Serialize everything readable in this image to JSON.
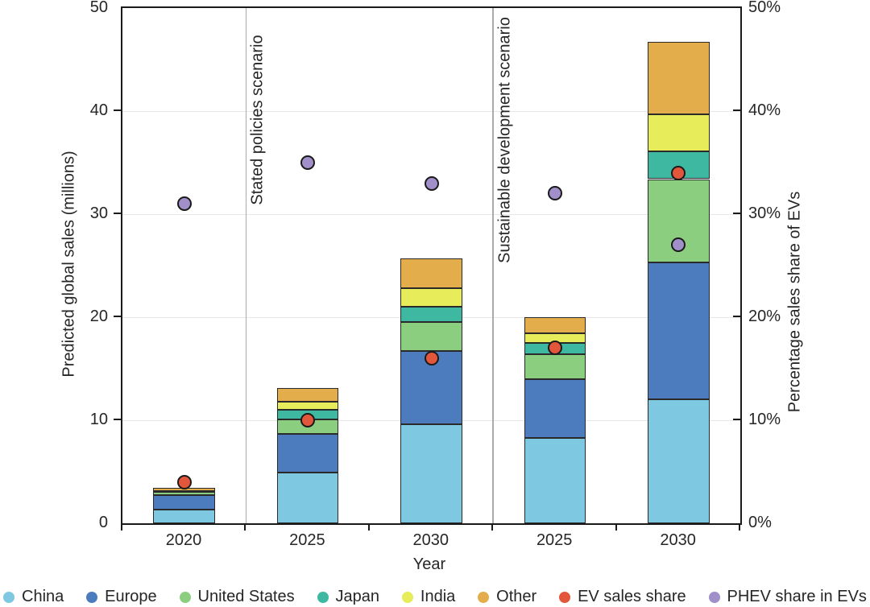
{
  "chart_data": {
    "type": "bar",
    "subtype": "stacked-bar-with-scatter-overlay",
    "categories": [
      "2020",
      "2025",
      "2030",
      "2025",
      "2030"
    ],
    "scenario_labels": [
      "Stated policies scenario",
      "Sustainable development scenario"
    ],
    "separator_slot_boundaries": [
      1,
      3
    ],
    "series": [
      {
        "name": "China",
        "color": "#7EC8E1",
        "values": [
          1.35,
          4.9,
          9.6,
          8.3,
          12.0
        ]
      },
      {
        "name": "Europe",
        "color": "#4C7CBD",
        "values": [
          1.4,
          3.8,
          7.1,
          5.7,
          13.3
        ]
      },
      {
        "name": "United States",
        "color": "#8CCE80",
        "values": [
          0.3,
          1.4,
          2.8,
          2.4,
          8.1
        ]
      },
      {
        "name": "Japan",
        "color": "#3FB8A1",
        "values": [
          0.05,
          0.9,
          1.5,
          1.1,
          2.7
        ]
      },
      {
        "name": "India",
        "color": "#E6EC5A",
        "values": [
          0.05,
          0.8,
          1.8,
          0.9,
          3.6
        ]
      },
      {
        "name": "Other",
        "color": "#E4AD4B",
        "values": [
          0.3,
          1.3,
          2.9,
          1.6,
          7.0
        ]
      }
    ],
    "dot_series": [
      {
        "name": "EV sales share",
        "color": "#E2573C",
        "values": [
          4,
          10,
          16,
          17,
          34
        ]
      },
      {
        "name": "PHEV share in EVs",
        "color": "#A18FC9",
        "values": [
          31,
          35,
          33,
          32,
          27
        ]
      }
    ],
    "xlabel": "Year",
    "ylabel_left": "Predicted global sales (millions)",
    "ylabel_right": "Percentage sales share of EVs",
    "y_left_ticks": [
      "0",
      "10",
      "20",
      "30",
      "40",
      "50"
    ],
    "y_right_ticks": [
      "0%",
      "10%",
      "20%",
      "30%",
      "40%",
      "50%"
    ],
    "y_tick_values": [
      0,
      10,
      20,
      30,
      40,
      50
    ],
    "ylim": [
      0,
      50
    ],
    "grid": "horizontal-light"
  },
  "colors": {
    "axis": "#1a1a1a",
    "gridline": "#e7e7e7",
    "separator": "#ababab",
    "text": "#262626"
  },
  "legend": {
    "items": [
      {
        "label": "China",
        "color": "#7EC8E1"
      },
      {
        "label": "Europe",
        "color": "#4C7CBD"
      },
      {
        "label": "United States",
        "color": "#8CCE80"
      },
      {
        "label": "Japan",
        "color": "#3FB8A1"
      },
      {
        "label": "India",
        "color": "#E6EC5A"
      },
      {
        "label": "Other",
        "color": "#E4AD4B"
      },
      {
        "label": "EV sales share",
        "color": "#E2573C"
      },
      {
        "label": "PHEV share in EVs",
        "color": "#A18FC9"
      }
    ]
  }
}
